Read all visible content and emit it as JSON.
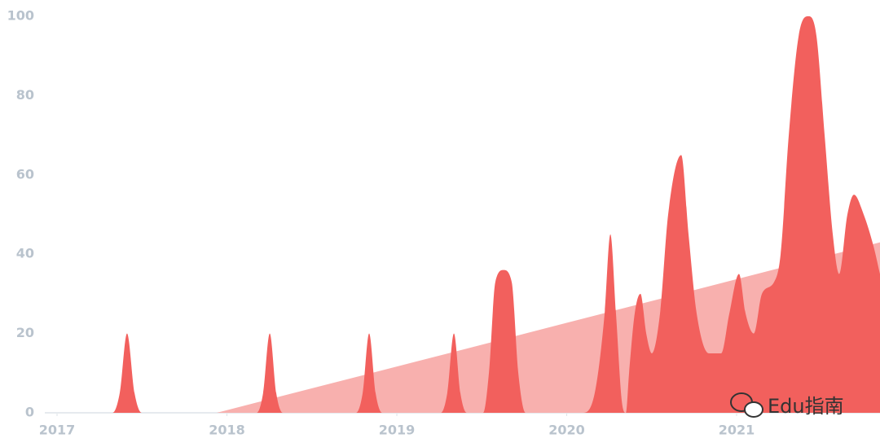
{
  "chart_data": {
    "type": "area",
    "xlim": [
      2016.928,
      2021.844
    ],
    "xticks": [
      2017,
      2018,
      2019,
      2020,
      2021
    ],
    "ylim": [
      0,
      100
    ],
    "yticks": [
      0,
      20,
      40,
      60,
      80,
      100
    ],
    "grid": false,
    "series": [
      {
        "color": "#f8b0ae",
        "x": [
          2017.94,
          2021.844
        ],
        "values": [
          0,
          43
        ]
      },
      {
        "color": "#f2605d",
        "x": [
          2016.928,
          2017.326,
          2017.369,
          2017.412,
          2017.456,
          2017.499,
          2018.175,
          2018.213,
          2018.252,
          2018.29,
          2018.329,
          2018.76,
          2018.799,
          2018.837,
          2018.875,
          2018.914,
          2019.259,
          2019.297,
          2019.336,
          2019.374,
          2019.412,
          2019.508,
          2019.542,
          2019.58,
          2019.628,
          2019.676,
          2019.715,
          2019.758,
          2020.094,
          2020.165,
          2020.223,
          2020.257,
          2020.29,
          2020.324,
          2020.348,
          2020.367,
          2020.4,
          2020.434,
          2020.468,
          2020.501,
          2020.549,
          2020.597,
          2020.674,
          2020.717,
          2020.765,
          2020.837,
          2020.909,
          2020.957,
          2021.014,
          2021.053,
          2021.101,
          2021.149,
          2021.221,
          2021.259,
          2021.307,
          2021.365,
          2021.422,
          2021.47,
          2021.518,
          2021.566,
          2021.604,
          2021.652,
          2021.691,
          2021.748,
          2021.806,
          2021.844
        ],
        "values": [
          0,
          0,
          5,
          20,
          5,
          0,
          0,
          5,
          20,
          5,
          0,
          0,
          5,
          20,
          5,
          0,
          0,
          5,
          20,
          5,
          0,
          0,
          10,
          33,
          36,
          33,
          10,
          0,
          0,
          5,
          25,
          45,
          25,
          3,
          0,
          10,
          25,
          30,
          20,
          15,
          25,
          50,
          65,
          45,
          25,
          15,
          15,
          25,
          35,
          25,
          20,
          30,
          33,
          40,
          70,
          95,
          100,
          95,
          70,
          45,
          35,
          50,
          55,
          50,
          42,
          35
        ]
      }
    ]
  },
  "watermark": "Edu指南"
}
